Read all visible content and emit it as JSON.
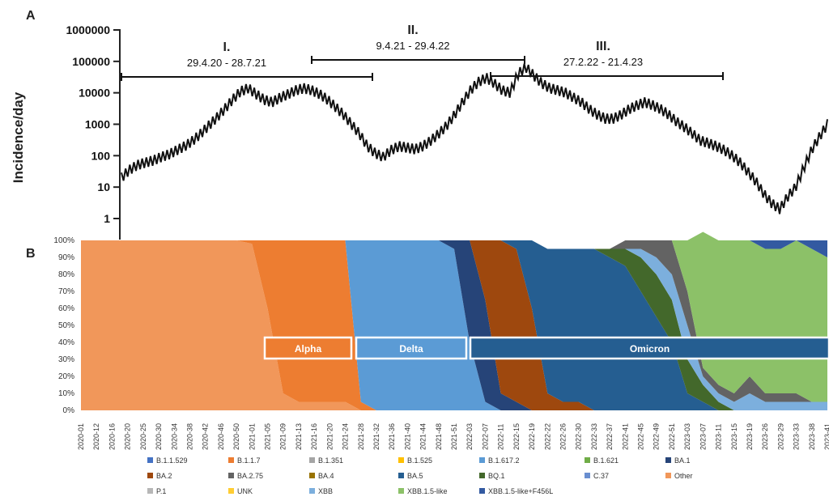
{
  "chart_data": [
    {
      "panel": "A",
      "type": "line",
      "ylabel": "Incidence/day",
      "yscale": "log",
      "yticks": [
        "1000000",
        "100000",
        "10000",
        "1000",
        "100",
        "10",
        "1"
      ],
      "ylim": [
        1,
        1000000
      ],
      "series": [
        {
          "values": [
            20,
            35,
            50,
            60,
            70,
            90,
            110,
            150,
            200,
            300,
            500,
            900,
            1600,
            3000,
            6000,
            11000,
            14000,
            9000,
            6000,
            5000,
            7000,
            9000,
            12000,
            14000,
            12000,
            9000,
            6000,
            3500,
            2000,
            1000,
            500,
            200,
            120,
            90,
            150,
            200,
            180,
            160,
            200,
            300,
            500,
            900,
            2000,
            5000,
            12000,
            22000,
            30000,
            20000,
            12000,
            10000,
            40000,
            65000,
            35000,
            20000,
            14000,
            12000,
            10000,
            7000,
            5000,
            3000,
            2000,
            1500,
            1500,
            2000,
            3000,
            4000,
            5000,
            4000,
            3000,
            2000,
            1200,
            800,
            500,
            300,
            250,
            200,
            150,
            100,
            60,
            30,
            15,
            6,
            3,
            2,
            5,
            10,
            40,
            150,
            400,
            1000
          ]
        }
      ],
      "periods": [
        {
          "label": "I.",
          "range": "29.4.20 - 28.7.21"
        },
        {
          "label": "II.",
          "range": "9.4.21 - 29.4.22"
        },
        {
          "label": "III.",
          "range": "27.2.22 - 21.4.23"
        }
      ]
    },
    {
      "panel": "B",
      "type": "area",
      "stacked": "percent",
      "ylim": [
        0,
        100
      ],
      "yticks": [
        "100%",
        "90%",
        "80%",
        "70%",
        "60%",
        "50%",
        "40%",
        "30%",
        "20%",
        "10%",
        "0%"
      ],
      "categories": [
        "2020-01",
        "2020-12",
        "2020-16",
        "2020-20",
        "2020-25",
        "2020-30",
        "2020-34",
        "2020-38",
        "2020-42",
        "2020-46",
        "2020-50",
        "2021-01",
        "2021-05",
        "2021-09",
        "2021-13",
        "2021-16",
        "2021-20",
        "2021-24",
        "2021-28",
        "2021-32",
        "2021-36",
        "2021-40",
        "2021-44",
        "2021-48",
        "2021-51",
        "2022-03",
        "2022-07",
        "2022-11",
        "2022-15",
        "2022-19",
        "2022-22",
        "2022-26",
        "2022-30",
        "2022-33",
        "2022-37",
        "2022-41",
        "2022-45",
        "2022-49",
        "2022-51",
        "2023-03",
        "2023-07",
        "2023-11",
        "2023-15",
        "2023-19",
        "2023-26",
        "2023-29",
        "2023-33",
        "2023-38",
        "2023-41"
      ],
      "series": [
        {
          "name": "Other",
          "values": [
            100,
            100,
            100,
            100,
            100,
            100,
            100,
            100,
            100,
            100,
            100,
            98,
            60,
            10,
            5,
            5,
            5,
            5,
            0,
            0,
            0,
            0,
            0,
            0,
            0,
            0,
            0,
            0,
            0,
            0,
            0,
            0,
            0,
            0,
            0,
            0,
            0,
            0,
            0,
            0,
            0,
            0,
            0,
            0,
            0,
            0,
            0,
            0,
            0
          ]
        },
        {
          "name": "B.1.1.7",
          "values": [
            0,
            0,
            0,
            0,
            0,
            0,
            0,
            0,
            0,
            0,
            0,
            2,
            40,
            90,
            95,
            95,
            95,
            95,
            5,
            0,
            0,
            0,
            0,
            0,
            0,
            0,
            0,
            0,
            0,
            0,
            0,
            0,
            0,
            0,
            0,
            0,
            0,
            0,
            0,
            0,
            0,
            0,
            0,
            0,
            0,
            0,
            0,
            0,
            0
          ]
        },
        {
          "name": "B.1.617.2",
          "values": [
            0,
            0,
            0,
            0,
            0,
            0,
            0,
            0,
            0,
            0,
            0,
            0,
            0,
            0,
            0,
            0,
            0,
            0,
            95,
            100,
            100,
            100,
            100,
            100,
            95,
            40,
            5,
            0,
            0,
            0,
            0,
            0,
            0,
            0,
            0,
            0,
            0,
            0,
            0,
            0,
            0,
            0,
            0,
            0,
            0,
            0,
            0,
            0,
            0
          ]
        },
        {
          "name": "BA.1",
          "values": [
            0,
            0,
            0,
            0,
            0,
            0,
            0,
            0,
            0,
            0,
            0,
            0,
            0,
            0,
            0,
            0,
            0,
            0,
            0,
            0,
            0,
            0,
            0,
            0,
            5,
            60,
            60,
            10,
            5,
            0,
            0,
            0,
            0,
            0,
            0,
            0,
            0,
            0,
            0,
            0,
            0,
            0,
            0,
            0,
            0,
            0,
            0,
            0,
            0
          ]
        },
        {
          "name": "BA.2",
          "values": [
            0,
            0,
            0,
            0,
            0,
            0,
            0,
            0,
            0,
            0,
            0,
            0,
            0,
            0,
            0,
            0,
            0,
            0,
            0,
            0,
            0,
            0,
            0,
            0,
            0,
            0,
            35,
            90,
            90,
            60,
            10,
            5,
            5,
            0,
            0,
            0,
            0,
            0,
            0,
            0,
            0,
            0,
            0,
            0,
            0,
            0,
            0,
            0,
            0
          ]
        },
        {
          "name": "BA.5",
          "values": [
            0,
            0,
            0,
            0,
            0,
            0,
            0,
            0,
            0,
            0,
            0,
            0,
            0,
            0,
            0,
            0,
            0,
            0,
            0,
            0,
            0,
            0,
            0,
            0,
            0,
            0,
            0,
            0,
            5,
            40,
            85,
            90,
            90,
            95,
            90,
            85,
            70,
            55,
            40,
            10,
            5,
            0,
            0,
            0,
            0,
            0,
            0,
            0,
            0
          ]
        },
        {
          "name": "BQ.1",
          "values": [
            0,
            0,
            0,
            0,
            0,
            0,
            0,
            0,
            0,
            0,
            0,
            0,
            0,
            0,
            0,
            0,
            0,
            0,
            0,
            0,
            0,
            0,
            0,
            0,
            0,
            0,
            0,
            0,
            0,
            0,
            0,
            0,
            0,
            0,
            5,
            10,
            20,
            25,
            25,
            20,
            10,
            5,
            0,
            0,
            0,
            0,
            0,
            0,
            0
          ]
        },
        {
          "name": "XBB",
          "values": [
            0,
            0,
            0,
            0,
            0,
            0,
            0,
            0,
            0,
            0,
            0,
            0,
            0,
            0,
            0,
            0,
            0,
            0,
            0,
            0,
            0,
            0,
            0,
            0,
            0,
            0,
            0,
            0,
            0,
            0,
            0,
            0,
            0,
            0,
            0,
            0,
            5,
            10,
            15,
            20,
            5,
            5,
            5,
            10,
            5,
            5,
            5,
            5,
            5
          ]
        },
        {
          "name": "BA.2.75",
          "values": [
            0,
            0,
            0,
            0,
            0,
            0,
            0,
            0,
            0,
            0,
            0,
            0,
            0,
            0,
            0,
            0,
            0,
            0,
            0,
            0,
            0,
            0,
            0,
            0,
            0,
            0,
            0,
            0,
            0,
            0,
            0,
            0,
            0,
            0,
            0,
            5,
            5,
            10,
            20,
            20,
            5,
            5,
            5,
            10,
            5,
            5,
            5,
            0,
            0
          ]
        },
        {
          "name": "XBB.1.5-like",
          "values": [
            0,
            0,
            0,
            0,
            0,
            0,
            0,
            0,
            0,
            0,
            0,
            0,
            0,
            0,
            0,
            0,
            0,
            0,
            0,
            0,
            0,
            0,
            0,
            0,
            0,
            0,
            0,
            0,
            0,
            0,
            0,
            0,
            0,
            0,
            0,
            0,
            0,
            0,
            0,
            30,
            80,
            85,
            90,
            80,
            85,
            85,
            90,
            90,
            85
          ]
        },
        {
          "name": "XBB.1.5-like+F456L",
          "values": [
            0,
            0,
            0,
            0,
            0,
            0,
            0,
            0,
            0,
            0,
            0,
            0,
            0,
            0,
            0,
            0,
            0,
            0,
            0,
            0,
            0,
            0,
            0,
            0,
            0,
            0,
            0,
            0,
            0,
            0,
            0,
            0,
            0,
            0,
            0,
            0,
            0,
            0,
            0,
            0,
            0,
            0,
            0,
            0,
            5,
            5,
            0,
            5,
            10
          ]
        }
      ],
      "variant_labels": [
        "Alpha",
        "Delta",
        "Omicron"
      ],
      "legend": [
        {
          "label": "B.1.1.529",
          "color": "#4472c4"
        },
        {
          "label": "B.1.1.7",
          "color": "#ed7d31"
        },
        {
          "label": "B.1.351",
          "color": "#a5a5a5"
        },
        {
          "label": "B.1.525",
          "color": "#ffc000"
        },
        {
          "label": "B.1.617.2",
          "color": "#5b9bd5"
        },
        {
          "label": "B.1.621",
          "color": "#70ad47"
        },
        {
          "label": "BA.1",
          "color": "#264478"
        },
        {
          "label": "BA.2",
          "color": "#9e480e"
        },
        {
          "label": "BA.2.75",
          "color": "#636363"
        },
        {
          "label": "BA.4",
          "color": "#997300"
        },
        {
          "label": "BA.5",
          "color": "#255e91"
        },
        {
          "label": "BQ.1",
          "color": "#43682b"
        },
        {
          "label": "C.37",
          "color": "#698ed0"
        },
        {
          "label": "Other",
          "color": "#f1975a"
        },
        {
          "label": "P.1",
          "color": "#b7b7b7"
        },
        {
          "label": "UNK",
          "color": "#ffcd33"
        },
        {
          "label": "XBB",
          "color": "#7cafdd"
        },
        {
          "label": "XBB.1.5-like",
          "color": "#8cc168"
        },
        {
          "label": "XBB.1.5-like+F456L",
          "color": "#335aa1"
        }
      ]
    }
  ],
  "panels": {
    "a": "A",
    "b": "B"
  }
}
